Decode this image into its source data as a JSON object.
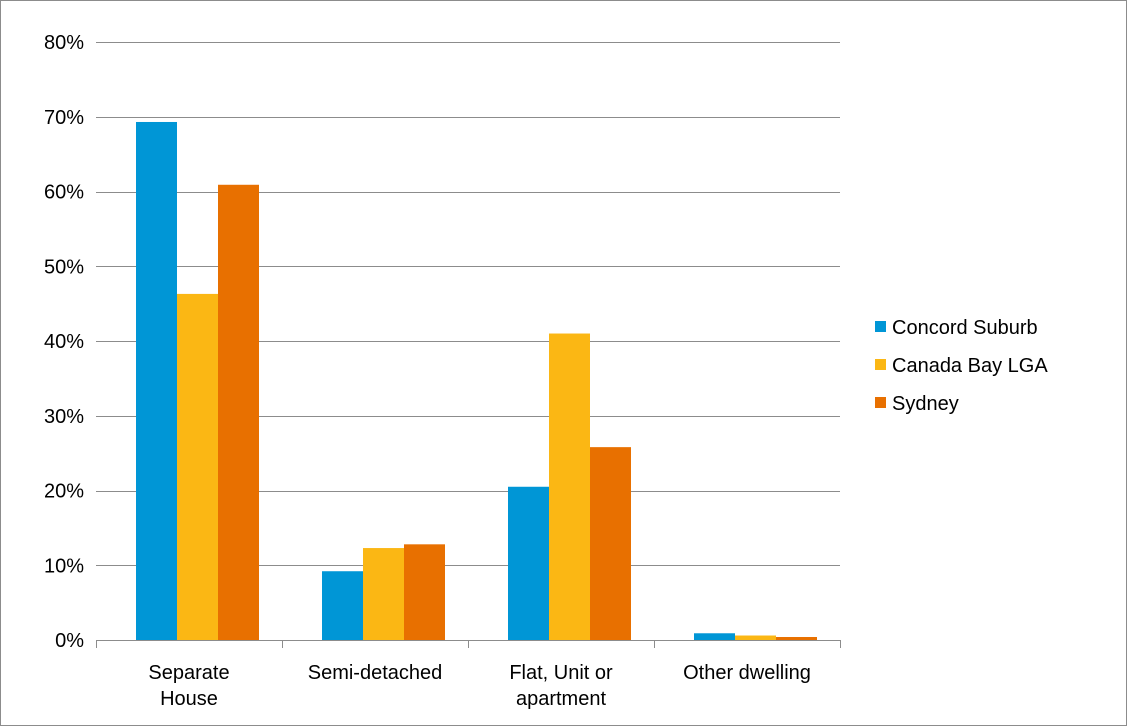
{
  "chart_data": {
    "type": "bar",
    "title": "",
    "xlabel": "",
    "ylabel": "",
    "categories": [
      [
        "Separate",
        "House"
      ],
      [
        "Semi-detached"
      ],
      [
        "Flat, Unit or",
        "apartment"
      ],
      [
        "Other dwelling"
      ]
    ],
    "series": [
      {
        "name": "Concord Suburb",
        "color": "#0096d6",
        "values": [
          69.3,
          9.2,
          20.5,
          0.9
        ]
      },
      {
        "name": "Canada Bay LGA",
        "color": "#fbb714",
        "values": [
          46.3,
          12.3,
          41.0,
          0.6
        ]
      },
      {
        "name": "Sydney",
        "color": "#e87000",
        "values": [
          60.9,
          12.8,
          25.8,
          0.4
        ]
      }
    ],
    "ylim": [
      0,
      80
    ],
    "yticks": [
      0,
      10,
      20,
      30,
      40,
      50,
      60,
      70,
      80
    ],
    "ytick_labels": [
      "0%",
      "10%",
      "20%",
      "30%",
      "40%",
      "50%",
      "60%",
      "70%",
      "80%"
    ],
    "grid": true,
    "gridline_color": "#8c8c8c",
    "legend_position": "right"
  }
}
